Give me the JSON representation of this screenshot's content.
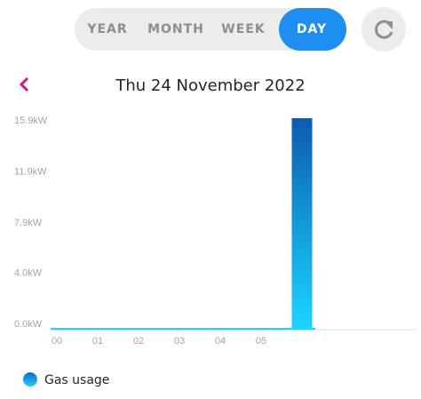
{
  "tabs": [
    "YEAR",
    "MONTH",
    "WEEK",
    "DAY"
  ],
  "date": "Thu 24 November 2022",
  "chart_data": {
    "type": "bar",
    "categories": [
      "00",
      "01",
      "02",
      "03",
      "04",
      "05",
      null
    ],
    "series": [
      {
        "name": "Gas usage",
        "color": "#1a8fe8",
        "values": [
          0,
          0,
          0,
          0,
          0,
          0,
          16.4
        ]
      }
    ],
    "ylim": [
      0,
      16.4
    ],
    "yticks": [
      {
        "value": 0,
        "label": "0.0kW"
      },
      {
        "value": 4.0,
        "label": "4.0kW"
      },
      {
        "value": 7.9,
        "label": "7.9kW"
      },
      {
        "value": 11.9,
        "label": "11.9kW"
      },
      {
        "value": 15.9,
        "label": "15.9kW"
      }
    ]
  }
}
